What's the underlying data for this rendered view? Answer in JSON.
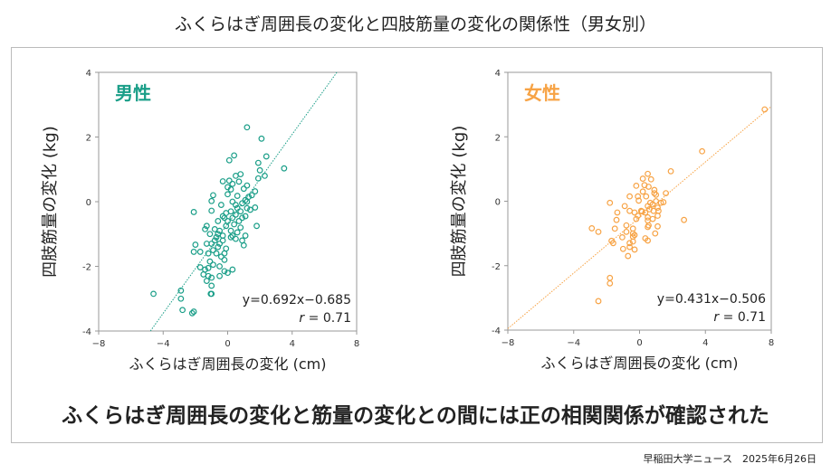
{
  "title": "ふくらはぎ周囲長の変化と四肢筋量の変化の関係性（男女別）",
  "conclusion": "ふくらはぎ周囲長の変化と筋量の変化との間には正の相関関係が確認された",
  "source": "早稲田大学ニュース　2025年6月26日",
  "chart_data": [
    {
      "type": "scatter",
      "title": "男性",
      "color": "#1a9e88",
      "xlabel": "ふくらはぎ周囲長の変化 (cm)",
      "ylabel": "四肢筋量の変化 (kg)",
      "xlim": [
        -8,
        8
      ],
      "ylim": [
        -4,
        4
      ],
      "xticks": [
        -8,
        -4,
        0,
        4,
        8
      ],
      "yticks": [
        -4,
        -2,
        0,
        2,
        4
      ],
      "equation": "y=0.692x−0.685",
      "r_label": "r",
      "r_value": "= 0.71",
      "fit": {
        "slope": 0.692,
        "intercept": -0.685
      },
      "points": [
        [
          1.2,
          2.3
        ],
        [
          2.1,
          1.95
        ],
        [
          2.4,
          1.4
        ],
        [
          3.5,
          1.03
        ],
        [
          0.4,
          1.43
        ],
        [
          0.1,
          1.28
        ],
        [
          1.9,
          1.2
        ],
        [
          2.0,
          0.97
        ],
        [
          2.3,
          0.8
        ],
        [
          1.9,
          0.72
        ],
        [
          0.5,
          0.8
        ],
        [
          0.8,
          0.85
        ],
        [
          -0.3,
          0.63
        ],
        [
          0.1,
          0.65
        ],
        [
          0.7,
          0.62
        ],
        [
          1.2,
          0.5
        ],
        [
          0.0,
          0.45
        ],
        [
          0.3,
          0.55
        ],
        [
          0.2,
          0.38
        ],
        [
          1.0,
          0.4
        ],
        [
          1.7,
          0.32
        ],
        [
          1.5,
          0.2
        ],
        [
          1.3,
          0.15
        ],
        [
          -0.9,
          0.2
        ],
        [
          -1.0,
          0.02
        ],
        [
          0.0,
          0.23
        ],
        [
          0.6,
          0.18
        ],
        [
          1.1,
          0.05
        ],
        [
          0.9,
          -0.05
        ],
        [
          1.2,
          0.0
        ],
        [
          0.3,
          0.0
        ],
        [
          0.5,
          -0.1
        ],
        [
          -0.4,
          -0.1
        ],
        [
          -1.0,
          -0.28
        ],
        [
          -2.1,
          -0.32
        ],
        [
          1.7,
          -0.18
        ],
        [
          1.4,
          -0.25
        ],
        [
          1.2,
          -0.2
        ],
        [
          0.8,
          -0.3
        ],
        [
          0.2,
          -0.3
        ],
        [
          -0.1,
          -0.35
        ],
        [
          0.5,
          -0.4
        ],
        [
          1.1,
          -0.45
        ],
        [
          0.9,
          -0.5
        ],
        [
          0.3,
          -0.5
        ],
        [
          -0.2,
          -0.5
        ],
        [
          0.0,
          -0.6
        ],
        [
          -0.6,
          -0.6
        ],
        [
          0.7,
          -0.6
        ],
        [
          0.4,
          -0.7
        ],
        [
          -0.1,
          -0.75
        ],
        [
          0.8,
          -0.8
        ],
        [
          1.8,
          -0.75
        ],
        [
          -1.3,
          -0.75
        ],
        [
          -1.4,
          -0.85
        ],
        [
          -0.8,
          -0.85
        ],
        [
          -0.5,
          -0.9
        ],
        [
          0.2,
          -0.9
        ],
        [
          0.6,
          -0.95
        ],
        [
          1.1,
          -1.05
        ],
        [
          0.3,
          -1.05
        ],
        [
          -0.3,
          -1.05
        ],
        [
          -1.1,
          -1.0
        ],
        [
          -0.7,
          -1.1
        ],
        [
          0.2,
          -1.1
        ],
        [
          0.5,
          -1.15
        ],
        [
          0.9,
          -1.2
        ],
        [
          1.0,
          -1.35
        ],
        [
          -0.3,
          -1.2
        ],
        [
          -0.8,
          -1.2
        ],
        [
          -1.0,
          -1.3
        ],
        [
          -0.5,
          -1.3
        ],
        [
          -1.3,
          -1.3
        ],
        [
          -0.6,
          -1.4
        ],
        [
          -0.9,
          -1.5
        ],
        [
          -0.1,
          -1.45
        ],
        [
          -0.2,
          -1.6
        ],
        [
          -0.7,
          -1.6
        ],
        [
          -1.2,
          -1.6
        ],
        [
          -2.0,
          -1.33
        ],
        [
          -2.1,
          -1.55
        ],
        [
          -1.7,
          -1.55
        ],
        [
          -0.4,
          -1.7
        ],
        [
          -0.2,
          -1.8
        ],
        [
          -1.1,
          -1.85
        ],
        [
          -0.9,
          -1.95
        ],
        [
          -0.5,
          -2.0
        ],
        [
          -1.7,
          -2.03
        ],
        [
          -1.4,
          -2.1
        ],
        [
          -1.2,
          -2.05
        ],
        [
          -0.2,
          -2.15
        ],
        [
          0.3,
          -2.1
        ],
        [
          0.0,
          -2.2
        ],
        [
          -1.5,
          -2.25
        ],
        [
          -1.2,
          -2.3
        ],
        [
          -0.5,
          -2.3
        ],
        [
          -1.0,
          -2.35
        ],
        [
          -1.3,
          -2.45
        ],
        [
          -1.0,
          -2.6
        ],
        [
          -1.0,
          -2.85
        ],
        [
          -1.05,
          -2.85
        ],
        [
          -4.6,
          -2.85
        ],
        [
          -2.9,
          -2.75
        ],
        [
          -2.9,
          -3.0
        ],
        [
          -2.8,
          -3.35
        ],
        [
          -2.2,
          -3.45
        ],
        [
          -2.1,
          -3.4
        ],
        [
          -0.3,
          -0.45
        ],
        [
          0.6,
          -0.2
        ],
        [
          -0.6,
          -1.0
        ]
      ]
    },
    {
      "type": "scatter",
      "title": "女性",
      "color": "#f7a345",
      "xlabel": "ふくらはぎ周囲長の変化 (cm)",
      "ylabel": "四肢筋量の変化 (kg)",
      "xlim": [
        -8,
        8
      ],
      "ylim": [
        -4,
        4
      ],
      "xticks": [
        -8,
        -4,
        0,
        4,
        8
      ],
      "yticks": [
        -4,
        -2,
        0,
        2,
        4
      ],
      "equation": "y=0.431x−0.506",
      "r_label": "r",
      "r_value": "= 0.71",
      "fit": {
        "slope": 0.431,
        "intercept": -0.506
      },
      "points": [
        [
          7.6,
          2.85
        ],
        [
          3.8,
          1.55
        ],
        [
          1.9,
          0.93
        ],
        [
          1.6,
          0.25
        ],
        [
          2.7,
          -0.58
        ],
        [
          -2.9,
          -0.84
        ],
        [
          -2.5,
          -0.95
        ],
        [
          -1.8,
          -0.05
        ],
        [
          -1.7,
          -1.23
        ],
        [
          -1.6,
          -1.3
        ],
        [
          -1.8,
          -2.38
        ],
        [
          -1.8,
          -2.55
        ],
        [
          -2.5,
          -3.1
        ],
        [
          -0.7,
          -1.7
        ],
        [
          -1.0,
          -1.48
        ],
        [
          -0.3,
          -1.5
        ],
        [
          0.5,
          0.85
        ],
        [
          0.2,
          0.7
        ],
        [
          0.7,
          0.68
        ],
        [
          -0.2,
          0.48
        ],
        [
          0.3,
          0.5
        ],
        [
          0.55,
          0.45
        ],
        [
          0.9,
          0.35
        ],
        [
          0.2,
          0.3
        ],
        [
          1.0,
          0.2
        ],
        [
          0.9,
          0.25
        ],
        [
          -0.6,
          0.15
        ],
        [
          -0.1,
          0.15
        ],
        [
          0.4,
          0.15
        ],
        [
          -0.05,
          0.02
        ],
        [
          1.0,
          0.0
        ],
        [
          1.3,
          -0.05
        ],
        [
          1.45,
          -0.03
        ],
        [
          0.8,
          -0.1
        ],
        [
          0.5,
          -0.15
        ],
        [
          1.1,
          -0.2
        ],
        [
          0.6,
          -0.25
        ],
        [
          0.85,
          -0.3
        ],
        [
          1.15,
          -0.3
        ],
        [
          -0.9,
          -0.15
        ],
        [
          -0.6,
          -0.3
        ],
        [
          0.1,
          -0.3
        ],
        [
          -0.3,
          -0.35
        ],
        [
          0.35,
          -0.35
        ],
        [
          -1.35,
          -0.35
        ],
        [
          -0.1,
          -0.45
        ],
        [
          0.5,
          -0.5
        ],
        [
          1.1,
          -0.45
        ],
        [
          0.8,
          -0.55
        ],
        [
          0.5,
          -0.6
        ],
        [
          -1.4,
          -0.58
        ],
        [
          -0.2,
          -0.55
        ],
        [
          -0.8,
          -0.75
        ],
        [
          0.55,
          -0.75
        ],
        [
          1.1,
          -0.78
        ],
        [
          -1.5,
          -0.85
        ],
        [
          -0.4,
          -0.85
        ],
        [
          0.5,
          -0.8
        ],
        [
          -0.8,
          -0.95
        ],
        [
          -0.4,
          -1.0
        ],
        [
          -0.3,
          -1.05
        ],
        [
          0.95,
          -1.0
        ],
        [
          -0.4,
          -1.1
        ],
        [
          -1.05,
          -1.12
        ],
        [
          0.35,
          -1.15
        ],
        [
          0.5,
          -1.22
        ],
        [
          -0.4,
          -1.25
        ],
        [
          -0.6,
          -1.3
        ],
        [
          -0.6,
          -1.42
        ],
        [
          0.15,
          -0.32
        ],
        [
          0.65,
          -0.05
        ]
      ]
    }
  ]
}
